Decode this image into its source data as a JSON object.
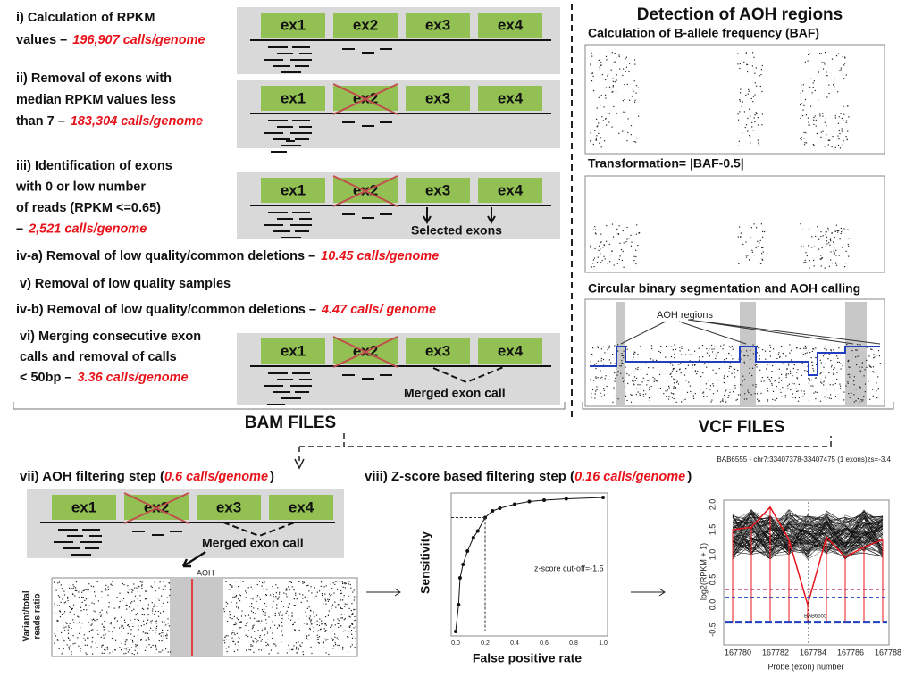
{
  "steps": [
    {
      "lines": [
        "i)  Calculation of RPKM",
        "values –"
      ],
      "count": "196,907 calls/genome"
    },
    {
      "lines": [
        "ii) Removal of exons with",
        "median RPKM values less",
        "than 7 –"
      ],
      "count": "183,304 calls/genome"
    },
    {
      "lines": [
        "iii) Identification of exons",
        "with 0 or low number",
        "of reads (RPKM <=0.65)",
        "–"
      ],
      "count": "2,521 calls/genome"
    },
    {
      "lines": [
        "iv-a) Removal of low quality/common deletions –"
      ],
      "count": "10.45 calls/genome"
    },
    {
      "lines": [
        "v) Removal of low quality samples"
      ]
    },
    {
      "lines": [
        "iv-b) Removal of low quality/common deletions –"
      ],
      "count": "4.47 calls/ genome"
    },
    {
      "lines": [
        "vi) Merging consecutive exon",
        "calls and removal of calls",
        "< 50bp  –"
      ],
      "count": "3.36 calls/genome"
    }
  ],
  "exon_labels": [
    "ex1",
    "ex2",
    "ex3",
    "ex4"
  ],
  "selected_exons": "Selected exons",
  "merged_exon_call": "Merged exon call",
  "bam_files": "BAM FILES",
  "vcf_files": "VCF FILES",
  "aoh_panel": {
    "title": "Detection of AOH regions",
    "baf": "Calculation of B-allele frequency (BAF)",
    "transform": "Transformation= |BAF-0.5|",
    "cbs": "Circular binary segmentation and AOH calling",
    "aoh_regions": "AOH regions"
  },
  "filter_vii": {
    "prefix": "vii) AOH filtering step (",
    "count": "0.6 calls/genome",
    "suffix": ")",
    "plot_label": "AOH",
    "y_label": [
      "Variant/total",
      "reads ratio"
    ]
  },
  "filter_viii": {
    "prefix": "viii) Z-score based filtering step (",
    "count": "0.16 calls/genome",
    "suffix": ")"
  },
  "roc": {
    "y_label": "Sensitivity",
    "x_label": "False positive rate",
    "cutoff": "z-score cut-off=-1.5",
    "xticks": [
      "0.0",
      "0.2",
      "0.4",
      "0.6",
      "0.8",
      "1.0"
    ]
  },
  "rpkm_plot": {
    "header": "BAB6555 - chr7:33407378-33407475 (1 exons)zs=-3.4",
    "y_label": "log2(RPKM + 1)",
    "x_label": "Probe (exon) number",
    "xticks": [
      "167780",
      "167782",
      "167784",
      "167786",
      "167788"
    ],
    "yticks": [
      "-0.5",
      "0.0",
      "0.5",
      "1.0",
      "1.5",
      "2.0"
    ],
    "sample": "BAB6555"
  }
}
